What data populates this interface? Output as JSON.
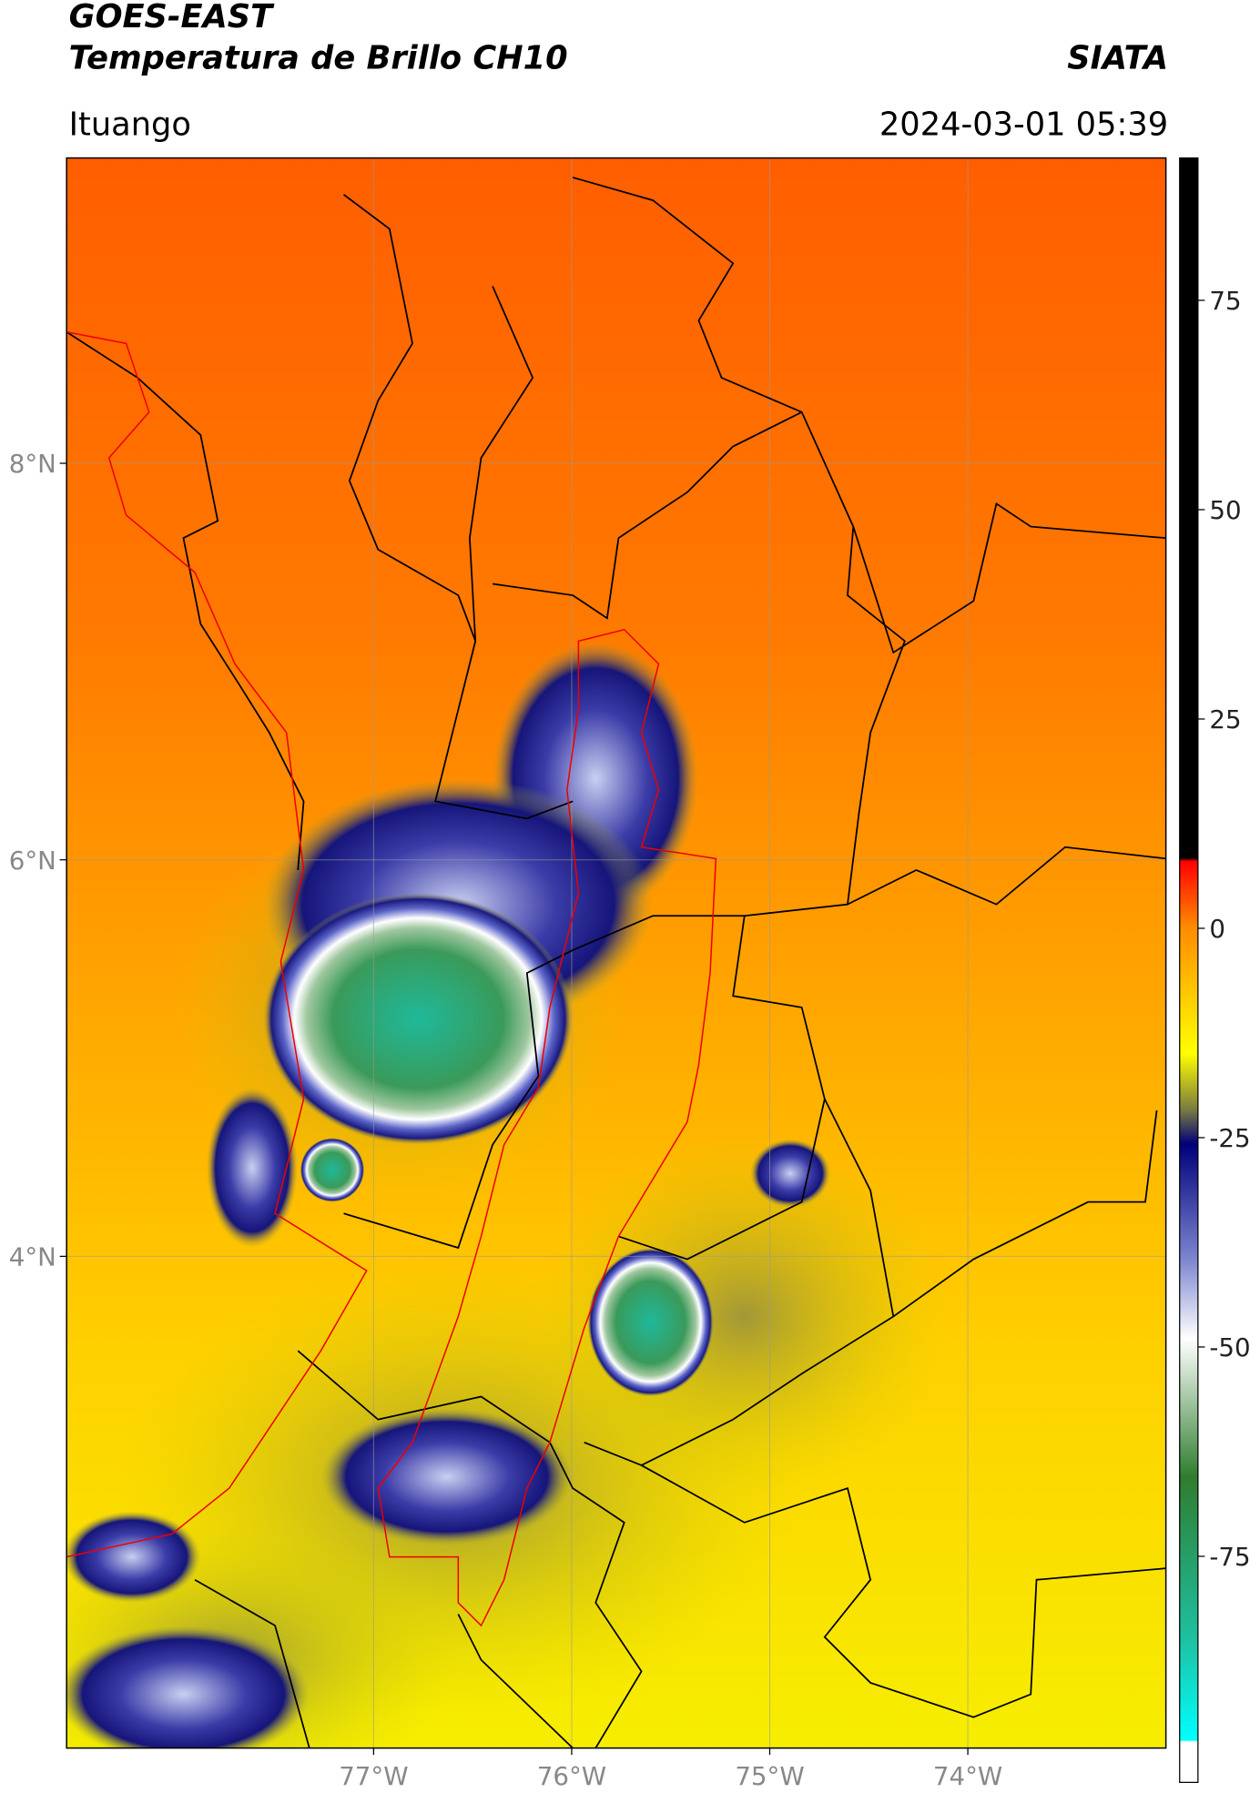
{
  "header": {
    "title": "GOES-EAST",
    "subtitle": "Temperatura de Brillo CH10",
    "brand": "SIATA",
    "location": "Ituango",
    "datetime": "2024-03-01 05:39"
  },
  "map": {
    "latlim": [
      1.52,
      9.54
    ],
    "lonlim": [
      -78.55,
      -73.0
    ],
    "lat_ticks": [
      {
        "value": 8,
        "label": "8°N"
      },
      {
        "value": 6,
        "label": "6°N"
      },
      {
        "value": 4,
        "label": "4°N"
      }
    ],
    "lon_ticks": [
      {
        "value": -77,
        "label": "77°W"
      },
      {
        "value": -76,
        "label": "76°W"
      },
      {
        "value": -75,
        "label": "75°W"
      },
      {
        "value": -74,
        "label": "74°W"
      }
    ]
  },
  "colorbar": {
    "lim": [
      -102,
      92
    ],
    "ticks": [
      75,
      50,
      25,
      0,
      -25,
      -50,
      -75
    ]
  }
}
